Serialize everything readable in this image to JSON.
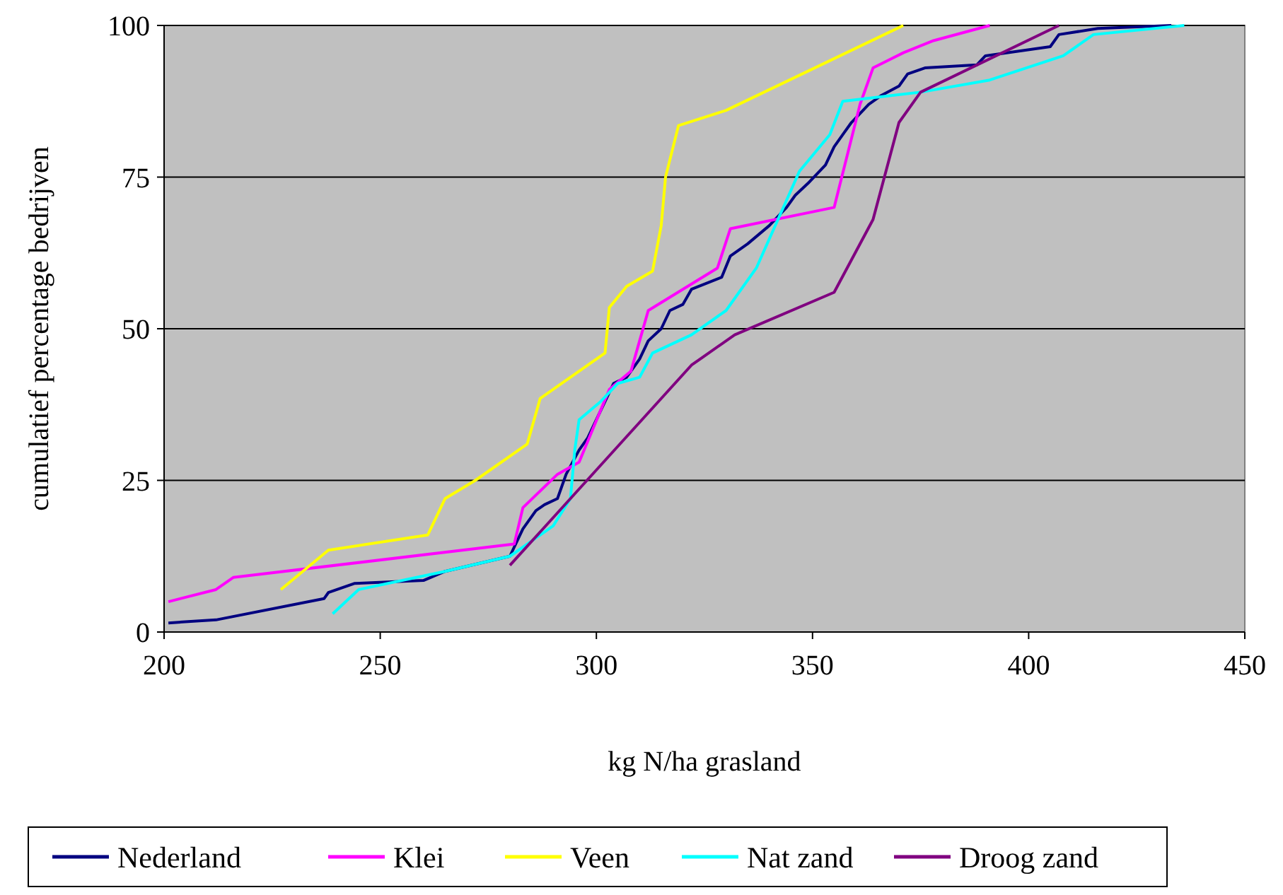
{
  "chart_data": {
    "type": "line",
    "xlabel": "kg N/ha grasland",
    "ylabel": "cumulatief percentage bedrijven",
    "xlim": [
      200,
      450
    ],
    "xticks": [
      200,
      250,
      300,
      350,
      400,
      450
    ],
    "ylim": [
      0,
      100
    ],
    "yticks": [
      0,
      25,
      50,
      75,
      100
    ],
    "grid": "y",
    "legend": "bottom",
    "marker": "none",
    "series": [
      {
        "name": "Nederland",
        "color": "#000080",
        "x": [
          201,
          212,
          237,
          238,
          244,
          260,
          265,
          280,
          283,
          286,
          288,
          291,
          293,
          296,
          298,
          300,
          304,
          307,
          310,
          312,
          315,
          317,
          320,
          322,
          329,
          331,
          335,
          340,
          344,
          346,
          349,
          353,
          355,
          357,
          359,
          363,
          366,
          370,
          372,
          376,
          388,
          390,
          405,
          407,
          416,
          433
        ],
        "values": [
          1.5,
          2,
          5.5,
          6.5,
          8,
          8.5,
          10,
          12.5,
          17,
          20,
          21,
          22,
          26,
          30,
          32,
          35,
          41,
          42,
          45,
          48,
          50,
          53,
          54,
          56.5,
          58.5,
          62,
          64,
          67,
          70,
          72,
          74,
          77,
          80,
          82,
          84,
          87,
          88.5,
          90,
          92,
          93,
          93.5,
          95,
          96.5,
          98.5,
          99.5,
          100
        ]
      },
      {
        "name": "Klei",
        "color": "#ff00ff",
        "x": [
          201,
          212,
          216,
          281,
          283,
          291,
          296,
          303,
          308,
          310,
          312,
          328,
          331,
          355,
          361,
          364,
          371,
          378,
          391
        ],
        "values": [
          5,
          7,
          9,
          14.5,
          20.5,
          26,
          28,
          40,
          43,
          48,
          53,
          60,
          66.5,
          70,
          87,
          93,
          95.5,
          97.5,
          100
        ]
      },
      {
        "name": "Veen",
        "color": "#ffff00",
        "x": [
          227,
          238,
          261,
          265,
          272,
          284,
          287,
          302,
          303,
          307,
          313,
          315,
          316,
          319,
          330,
          371
        ],
        "values": [
          7,
          13.5,
          16,
          22,
          25,
          31,
          38.5,
          46,
          53.5,
          57,
          59.5,
          67,
          75,
          83.5,
          86,
          100
        ]
      },
      {
        "name": "Nat zand",
        "color": "#00ffff",
        "x": [
          239,
          245,
          265,
          280,
          285,
          290,
          294,
          295,
          296,
          301,
          305,
          310,
          313,
          322,
          330,
          337,
          347,
          354,
          357,
          375,
          391,
          408,
          415,
          436
        ],
        "values": [
          3,
          7,
          10,
          12.5,
          15,
          17.5,
          22,
          30,
          35,
          38,
          41,
          42,
          46,
          49,
          53,
          60,
          76,
          82,
          87.5,
          89,
          91,
          95,
          98.5,
          100
        ]
      },
      {
        "name": "Droog zand",
        "color": "#800080",
        "x": [
          280,
          322,
          332,
          355,
          364,
          370,
          375,
          407
        ],
        "values": [
          11,
          44,
          49,
          56,
          68,
          84,
          89,
          100
        ]
      }
    ]
  }
}
